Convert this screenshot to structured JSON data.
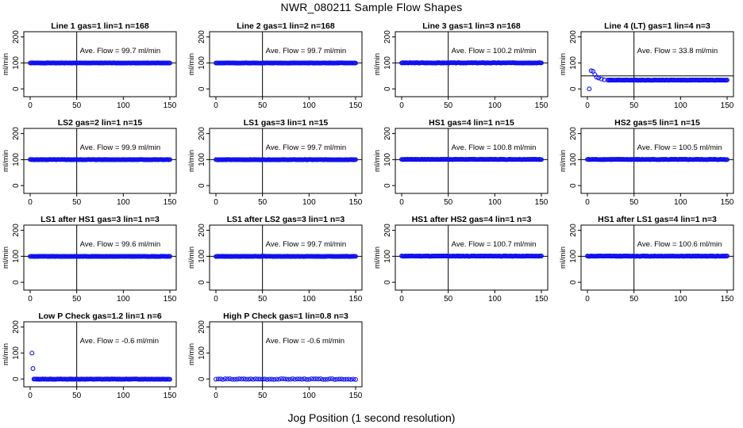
{
  "page": {
    "title": "NWR_080211  Sample Flow Shapes",
    "xlabel": "Jog Position (1 second resolution)"
  },
  "colors": {
    "points": "#1010f0",
    "axes": "#000000"
  },
  "chart_data": [
    {
      "type": "scatter",
      "title": "Line 1 gas=1 lin=1 n=168",
      "ylabel": "ml/min",
      "xlim": [
        0,
        150
      ],
      "ylim": [
        -30,
        220
      ],
      "xticks": [
        0,
        50,
        100,
        150
      ],
      "yticks": [
        0,
        100,
        200
      ],
      "vline": 50,
      "hline": 100,
      "annotation": "Ave. Flow =  99.7  ml/min",
      "shape": "flat",
      "level": 99.7
    },
    {
      "type": "scatter",
      "title": "Line 2 gas=1 lin=2 n=168",
      "ylabel": "ml/min",
      "xlim": [
        0,
        150
      ],
      "ylim": [
        -30,
        220
      ],
      "xticks": [
        0,
        50,
        100,
        150
      ],
      "yticks": [
        0,
        100,
        200
      ],
      "vline": 50,
      "hline": 100,
      "annotation": "Ave. Flow =  99.7  ml/min",
      "shape": "flat",
      "level": 99.7
    },
    {
      "type": "scatter",
      "title": "Line 3 gas=1 lin=3 n=168",
      "ylabel": "ml/min",
      "xlim": [
        0,
        150
      ],
      "ylim": [
        -30,
        220
      ],
      "xticks": [
        0,
        50,
        100,
        150
      ],
      "yticks": [
        0,
        100,
        200
      ],
      "vline": 50,
      "hline": 100,
      "annotation": "Ave. Flow =  100.2  ml/min",
      "shape": "flat",
      "level": 100.2
    },
    {
      "type": "scatter",
      "title": "Line 4 (LT) gas=1 lin=4 n=3",
      "ylabel": "ml/min",
      "xlim": [
        0,
        150
      ],
      "ylim": [
        -30,
        220
      ],
      "xticks": [
        0,
        50,
        100,
        150
      ],
      "yticks": [
        0,
        100,
        200
      ],
      "vline": 50,
      "hline": 50,
      "annotation": "Ave. Flow =  33.8  ml/min",
      "shape": "decay",
      "level": 33.8,
      "start_points": [
        [
          2,
          0
        ],
        [
          4,
          70
        ],
        [
          6,
          68
        ],
        [
          8,
          55
        ],
        [
          10,
          45
        ],
        [
          12,
          42
        ],
        [
          15,
          38
        ],
        [
          18,
          35
        ],
        [
          22,
          34
        ]
      ]
    },
    {
      "type": "scatter",
      "title": "LS2 gas=2 lin=1 n=15",
      "ylabel": "ml/min",
      "xlim": [
        0,
        150
      ],
      "ylim": [
        -30,
        220
      ],
      "xticks": [
        0,
        50,
        100,
        150
      ],
      "yticks": [
        0,
        100,
        200
      ],
      "vline": 50,
      "hline": 100,
      "annotation": "Ave. Flow =  99.9  ml/min",
      "shape": "flat",
      "level": 99.9
    },
    {
      "type": "scatter",
      "title": "LS1 gas=3 lin=1 n=15",
      "ylabel": "ml/min",
      "xlim": [
        0,
        150
      ],
      "ylim": [
        -30,
        220
      ],
      "xticks": [
        0,
        50,
        100,
        150
      ],
      "yticks": [
        0,
        100,
        200
      ],
      "vline": 50,
      "hline": 100,
      "annotation": "Ave. Flow =  99.7  ml/min",
      "shape": "flat",
      "level": 99.7
    },
    {
      "type": "scatter",
      "title": "HS1 gas=4 lin=1 n=15",
      "ylabel": "ml/min",
      "xlim": [
        0,
        150
      ],
      "ylim": [
        -30,
        220
      ],
      "xticks": [
        0,
        50,
        100,
        150
      ],
      "yticks": [
        0,
        100,
        200
      ],
      "vline": 50,
      "hline": 100,
      "annotation": "Ave. Flow =  100.8  ml/min",
      "shape": "flat",
      "level": 100.8
    },
    {
      "type": "scatter",
      "title": "HS2 gas=5 lin=1 n=15",
      "ylabel": "ml/min",
      "xlim": [
        0,
        150
      ],
      "ylim": [
        -30,
        220
      ],
      "xticks": [
        0,
        50,
        100,
        150
      ],
      "yticks": [
        0,
        100,
        200
      ],
      "vline": 50,
      "hline": 100,
      "annotation": "Ave. Flow =  100.5  ml/min",
      "shape": "flat",
      "level": 100.5
    },
    {
      "type": "scatter",
      "title": "LS1 after HS1 gas=3 lin=1 n=3",
      "ylabel": "ml/min",
      "xlim": [
        0,
        150
      ],
      "ylim": [
        -30,
        220
      ],
      "xticks": [
        0,
        50,
        100,
        150
      ],
      "yticks": [
        0,
        100,
        200
      ],
      "vline": 50,
      "hline": 100,
      "annotation": "Ave. Flow =  99.6  ml/min",
      "shape": "flat",
      "level": 99.6
    },
    {
      "type": "scatter",
      "title": "LS1 after LS2 gas=3 lin=1 n=3",
      "ylabel": "ml/min",
      "xlim": [
        0,
        150
      ],
      "ylim": [
        -30,
        220
      ],
      "xticks": [
        0,
        50,
        100,
        150
      ],
      "yticks": [
        0,
        100,
        200
      ],
      "vline": 50,
      "hline": 100,
      "annotation": "Ave. Flow =  99.7  ml/min",
      "shape": "flat",
      "level": 99.7
    },
    {
      "type": "scatter",
      "title": "HS1 after HS2 gas=4 lin=1 n=3",
      "ylabel": "ml/min",
      "xlim": [
        0,
        150
      ],
      "ylim": [
        -30,
        220
      ],
      "xticks": [
        0,
        50,
        100,
        150
      ],
      "yticks": [
        0,
        100,
        200
      ],
      "vline": 50,
      "hline": 100,
      "annotation": "Ave. Flow =  100.7  ml/min",
      "shape": "flat",
      "level": 100.7
    },
    {
      "type": "scatter",
      "title": "HS1 after LS1 gas=4 lin=1 n=3",
      "ylabel": "ml/min",
      "xlim": [
        0,
        150
      ],
      "ylim": [
        -30,
        220
      ],
      "xticks": [
        0,
        50,
        100,
        150
      ],
      "yticks": [
        0,
        100,
        200
      ],
      "vline": 50,
      "hline": 100,
      "annotation": "Ave. Flow =  100.6  ml/min",
      "shape": "flat",
      "level": 100.6
    },
    {
      "type": "scatter",
      "title": "Low P Check gas=1.2 lin=1 n=6",
      "ylabel": "ml/min",
      "xlim": [
        0,
        150
      ],
      "ylim": [
        -30,
        220
      ],
      "xticks": [
        0,
        50,
        100,
        150
      ],
      "yticks": [
        0,
        100,
        200
      ],
      "vline": 50,
      "hline": null,
      "annotation": "Ave. Flow =  -0.6  ml/min",
      "shape": "flat",
      "level": -0.6,
      "start_points": [
        [
          2,
          100
        ],
        [
          3,
          40
        ]
      ]
    },
    {
      "type": "scatter",
      "title": "High P Check gas=1 lin=0.8 n=3",
      "ylabel": "ml/min",
      "xlim": [
        0,
        150
      ],
      "ylim": [
        -30,
        220
      ],
      "xticks": [
        0,
        50,
        100,
        150
      ],
      "yticks": [
        0,
        100,
        200
      ],
      "vline": 50,
      "hline": null,
      "annotation": "Ave. Flow =  -0.6  ml/min",
      "shape": "sparse",
      "level": -0.6
    }
  ]
}
